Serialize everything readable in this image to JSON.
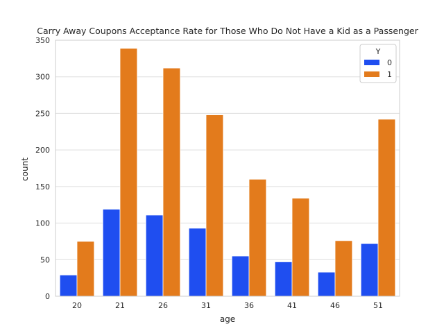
{
  "chart_data": {
    "type": "bar",
    "title": "Carry Away Coupons Acceptance Rate for Those Who Do Not Have a Kid as a Passenger",
    "xlabel": "age",
    "ylabel": "count",
    "categories": [
      "20",
      "21",
      "26",
      "31",
      "36",
      "41",
      "46",
      "51"
    ],
    "series": [
      {
        "name": "0",
        "color": "#1f4ef0",
        "values": [
          29,
          119,
          111,
          93,
          55,
          47,
          33,
          72
        ]
      },
      {
        "name": "1",
        "color": "#e37b1c",
        "values": [
          75,
          339,
          312,
          248,
          160,
          134,
          76,
          242
        ]
      }
    ],
    "ylim": [
      0,
      350
    ],
    "yticks": [
      0,
      50,
      100,
      150,
      200,
      250,
      300,
      350
    ],
    "grid": true,
    "legend": {
      "title": "Y",
      "position": "top-right"
    }
  }
}
